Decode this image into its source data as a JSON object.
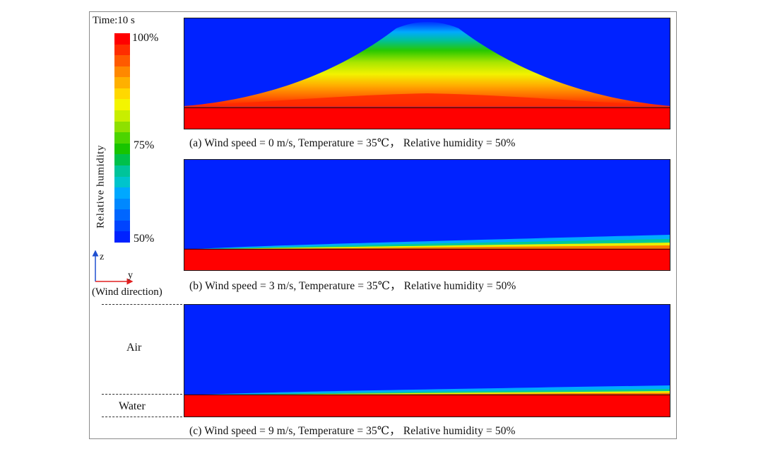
{
  "legend": {
    "time_label": "Time:10 s",
    "title": "Relative humidity",
    "ticks": [
      "100%",
      "75%",
      "50%"
    ],
    "colors": [
      "#ff0000",
      "#ff2d00",
      "#ff5a00",
      "#ff8800",
      "#ffb000",
      "#ffd800",
      "#f4f500",
      "#c8ee00",
      "#8ee000",
      "#4cd400",
      "#18c400",
      "#00c04a",
      "#00c49a",
      "#00c4cc",
      "#00a8ff",
      "#0088ff",
      "#0066ff",
      "#0044ff",
      "#0022ff"
    ]
  },
  "axes": {
    "z_label": "z",
    "y_label": "y",
    "wind_direction": "(Wind direction)"
  },
  "regions": {
    "air": "Air",
    "water": "Water"
  },
  "panels": [
    {
      "caption": "(a) Wind speed = 0 m/s, Temperature = 35℃， Relative humidity = 50%"
    },
    {
      "caption": "(b) Wind speed = 3 m/s, Temperature = 35℃， Relative humidity = 50%"
    },
    {
      "caption": "(c) Wind speed = 9 m/s, Temperature = 35℃， Relative humidity = 50%"
    }
  ],
  "colors": {
    "water": "#ff0000",
    "air": "#0022ff",
    "frame": "#8a8a8a"
  }
}
